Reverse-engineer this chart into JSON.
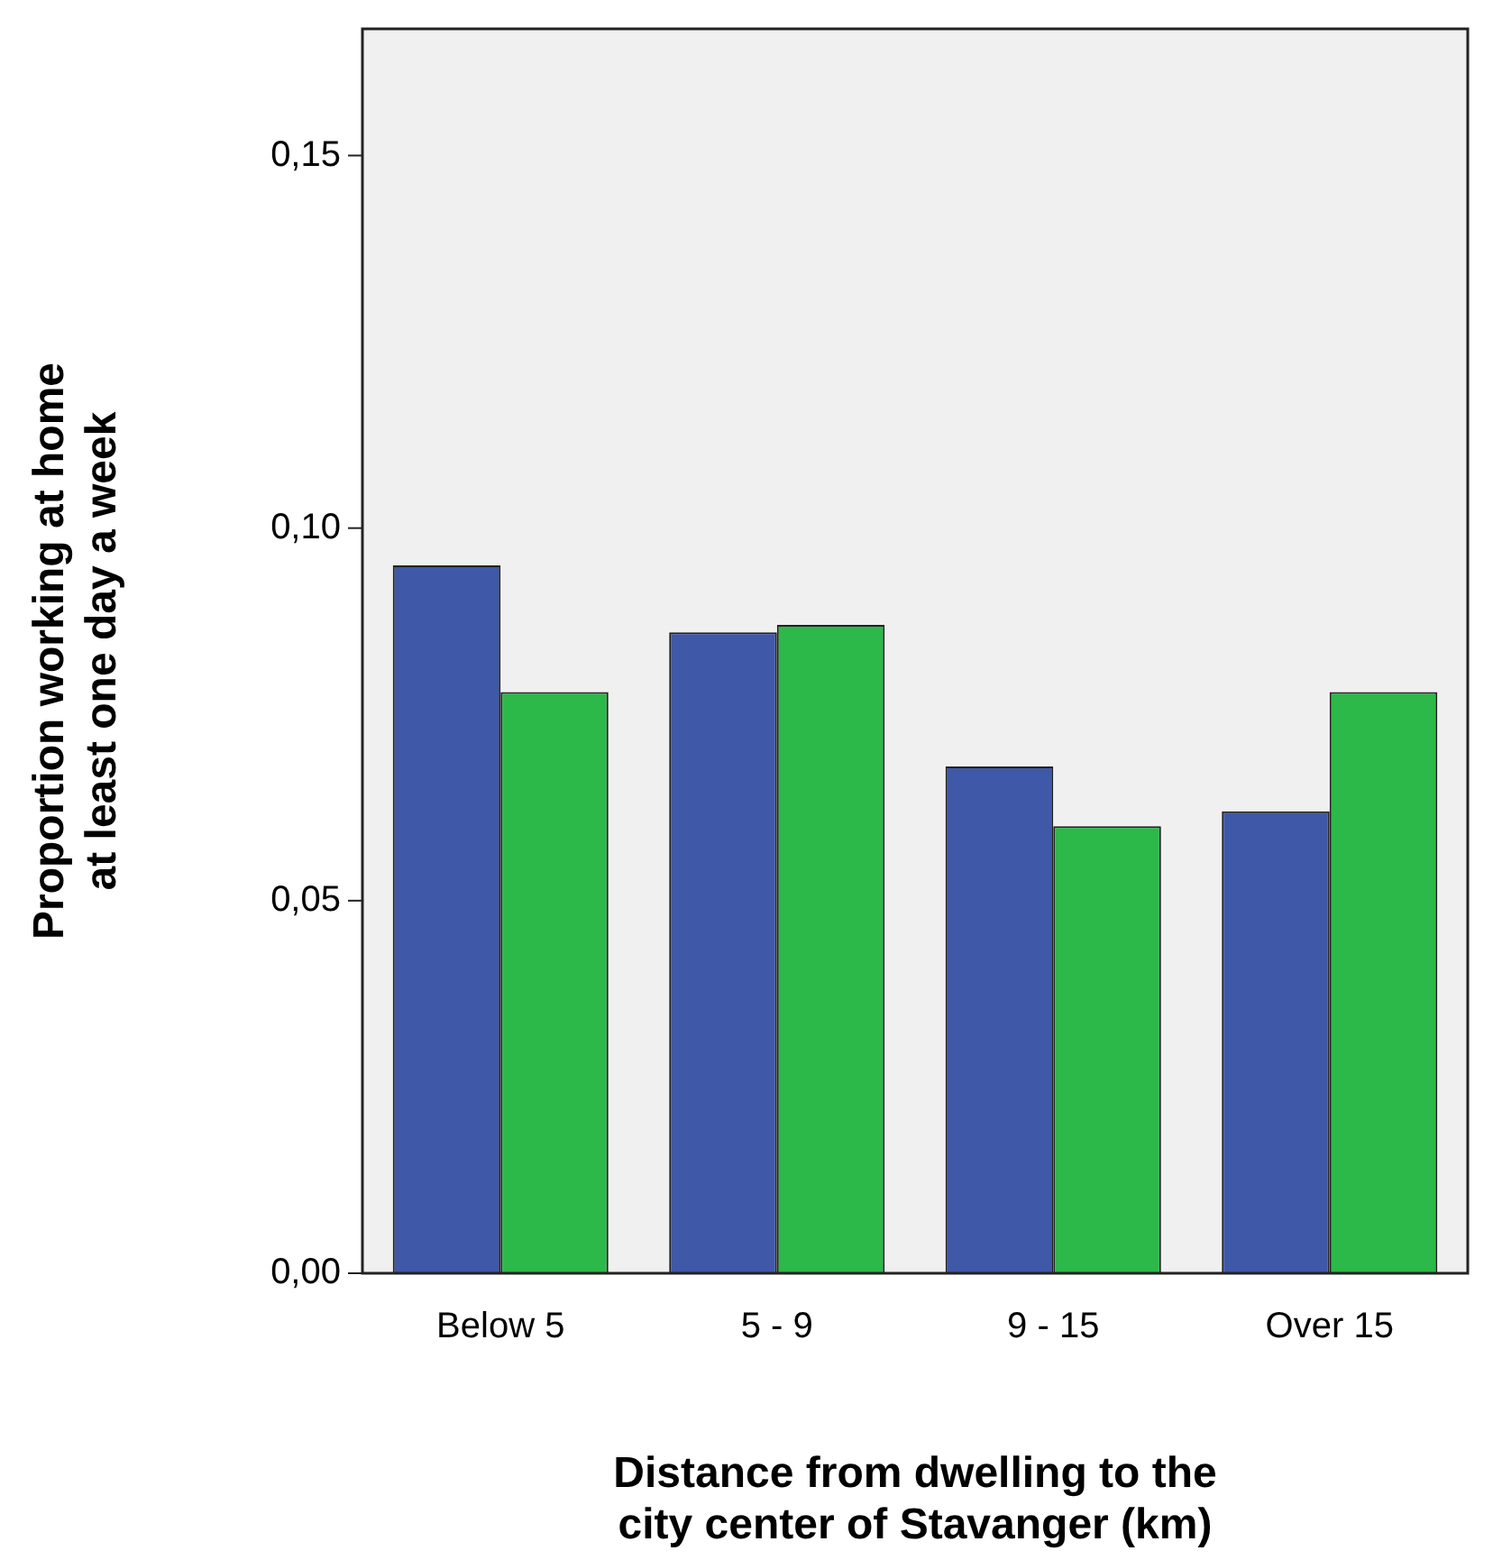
{
  "chart_data": {
    "type": "bar",
    "xlabel": "Distance from dwelling to the city center of Stavanger (km)",
    "ylabel": "Proportion working at home at least one day a week",
    "categories": [
      "Below 5",
      "5 - 9",
      "9 - 15",
      "Over 15"
    ],
    "series": [
      {
        "color": "#3f58a8",
        "values": [
          0.095,
          0.086,
          0.068,
          0.062
        ]
      },
      {
        "color": "#2db84a",
        "values": [
          0.078,
          0.087,
          0.06,
          0.078
        ]
      }
    ],
    "ylim": [
      0,
      0.167
    ],
    "yticks": [
      {
        "value": 0,
        "label": "0,00"
      },
      {
        "value": 0.05,
        "label": "0,05"
      },
      {
        "value": 0.1,
        "label": "0,10"
      },
      {
        "value": 0.15,
        "label": "0,15"
      }
    ],
    "grid": false,
    "legend": false
  }
}
